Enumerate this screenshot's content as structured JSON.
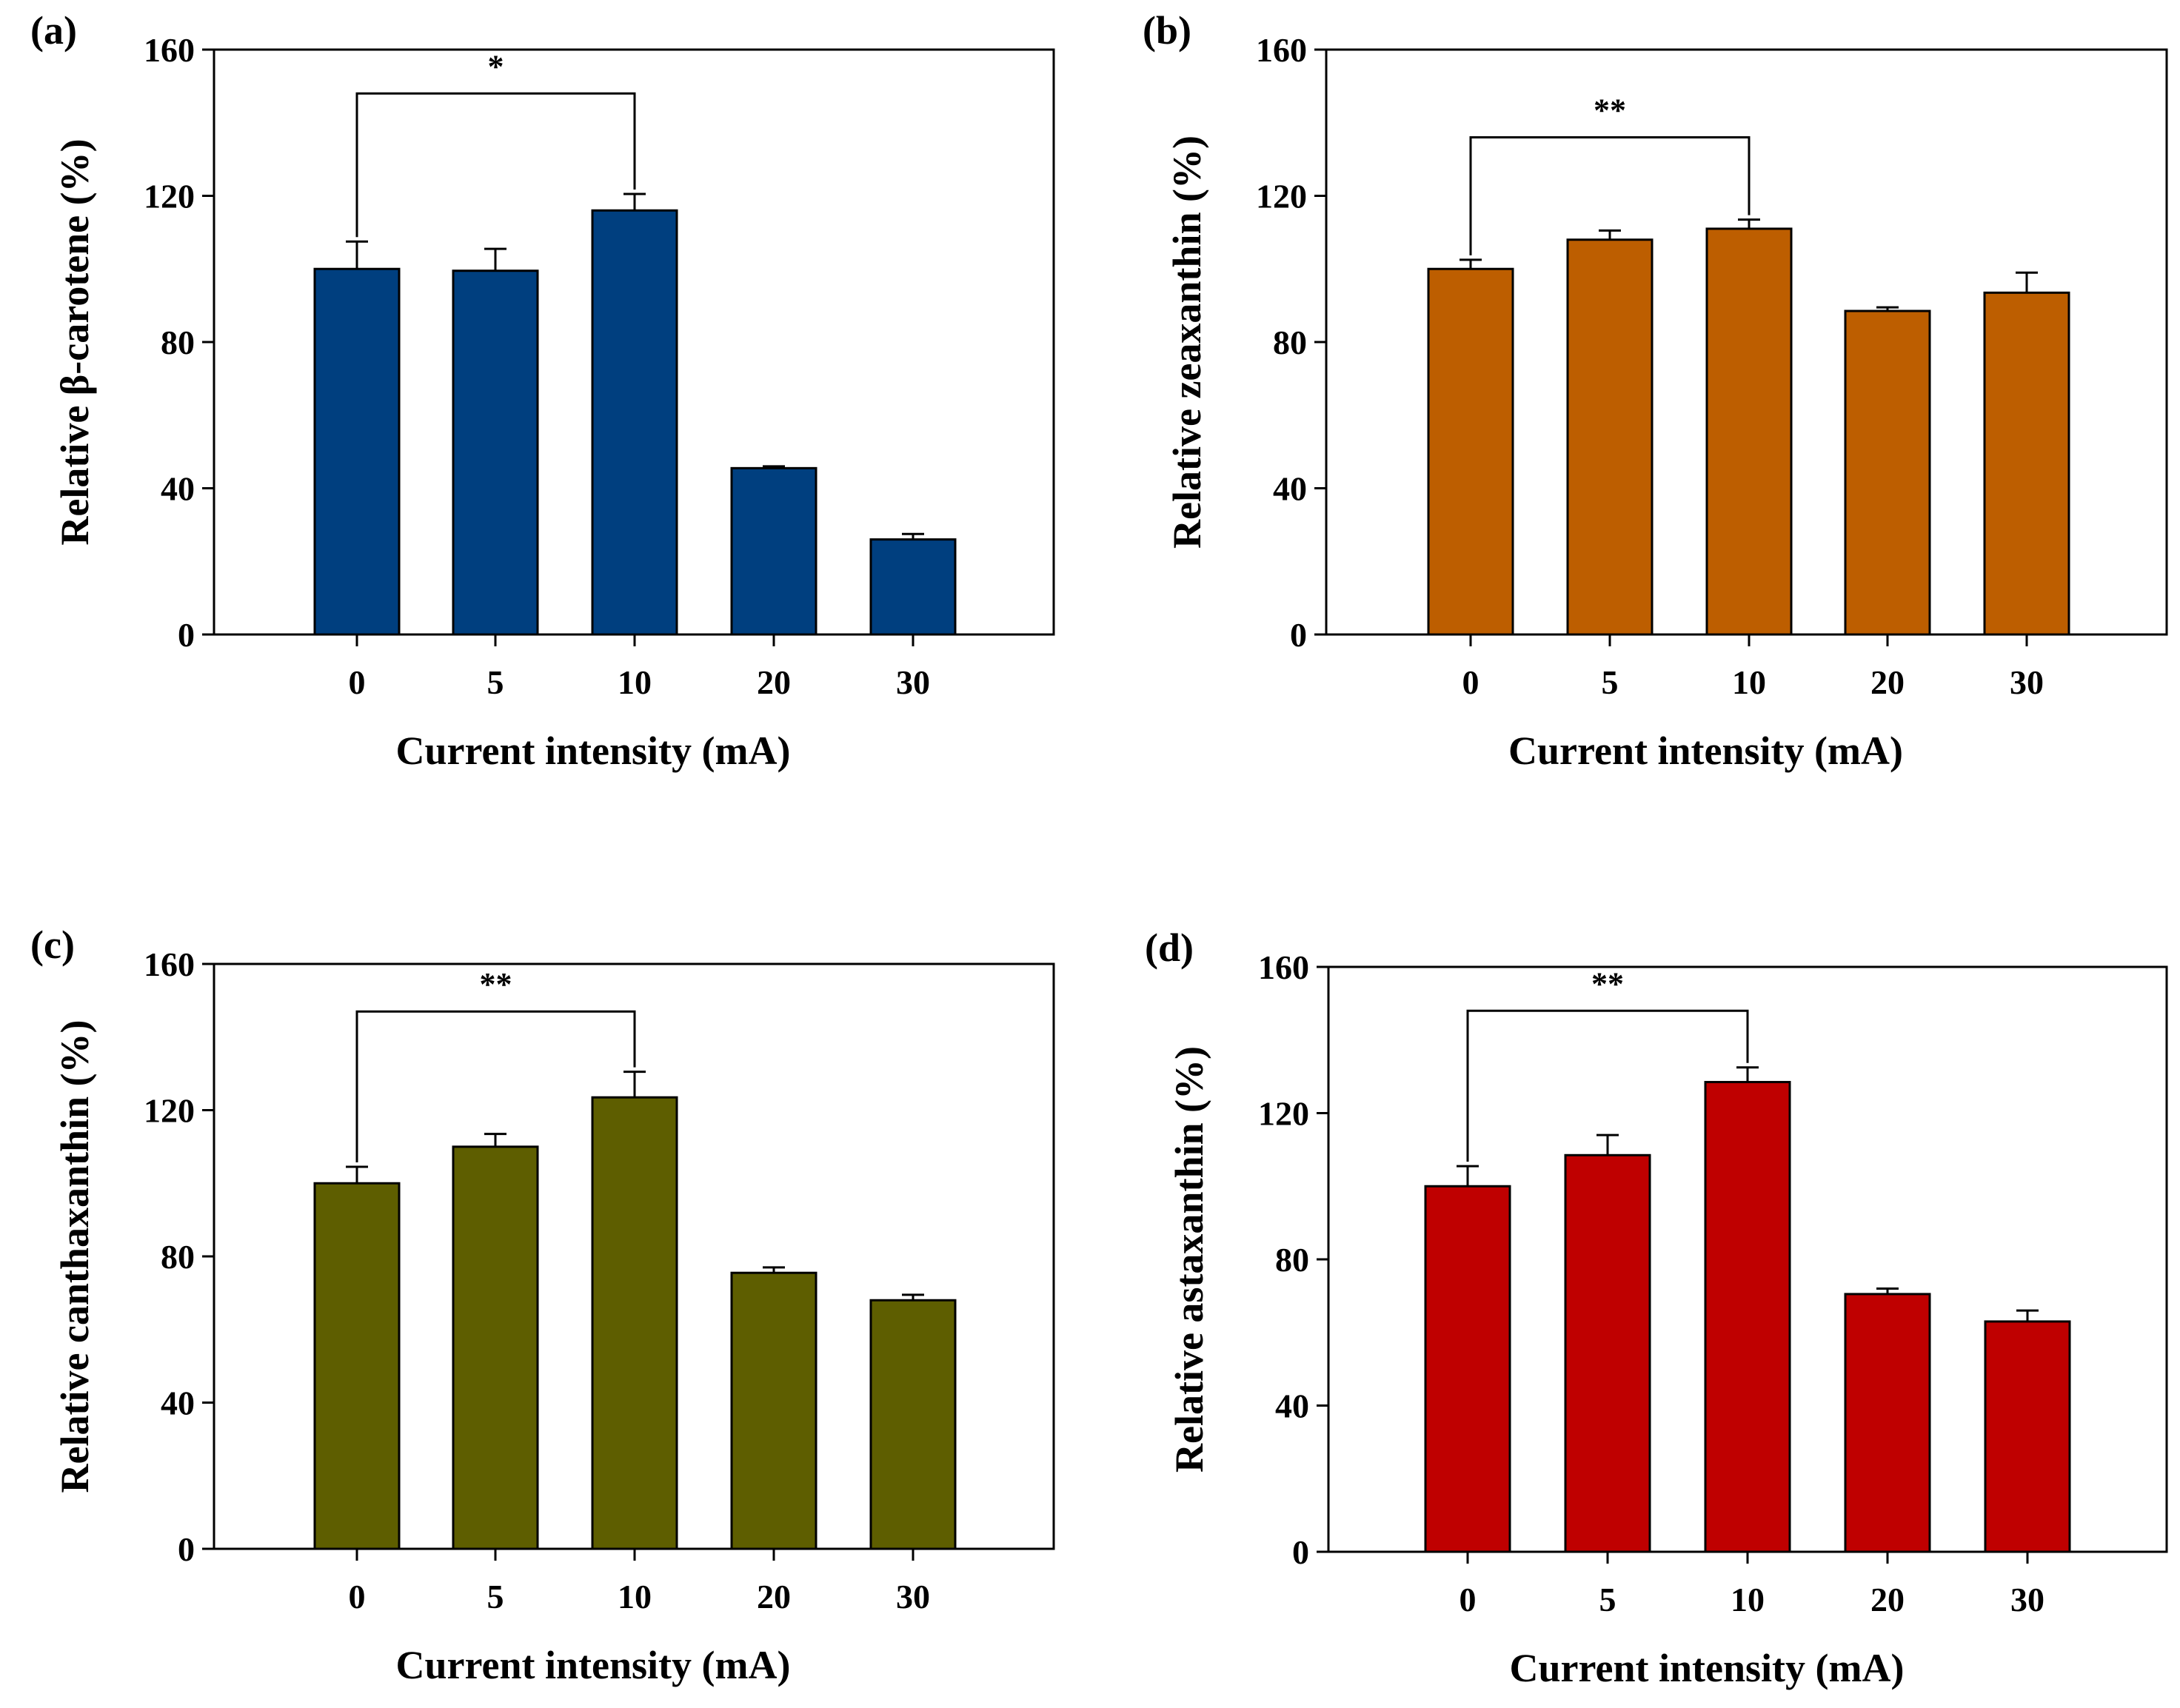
{
  "chart_data": [
    {
      "type": "bar",
      "panel_label": "(a)",
      "xlabel": "Current intensity (mA)",
      "ylabel": "Relative β-carotene (%)",
      "categories": [
        "0",
        "5",
        "10",
        "20",
        "30"
      ],
      "values": [
        100,
        99.5,
        116,
        45.5,
        26
      ],
      "errors": [
        7.5,
        6,
        4.5,
        0.5,
        1.5
      ],
      "ylim": [
        0,
        160
      ],
      "yticks": [
        "0",
        "40",
        "80",
        "120",
        "160"
      ],
      "color": "#003f7f",
      "significance": {
        "from": 0,
        "to": 2,
        "label": "*",
        "level": 148
      }
    },
    {
      "type": "bar",
      "panel_label": "(b)",
      "xlabel": "Current intensity (mA)",
      "ylabel": "Relative zeaxanthin (%)",
      "categories": [
        "0",
        "5",
        "10",
        "20",
        "30"
      ],
      "values": [
        100,
        108,
        111,
        88.5,
        93.5
      ],
      "errors": [
        2.5,
        2.5,
        2.5,
        1,
        5.5
      ],
      "ylim": [
        0,
        160
      ],
      "yticks": [
        "0",
        "40",
        "80",
        "120",
        "160"
      ],
      "color": "#bd5e00",
      "significance": {
        "from": 0,
        "to": 2,
        "label": "**",
        "level": 136
      }
    },
    {
      "type": "bar",
      "panel_label": "(c)",
      "xlabel": "Current intensity (mA)",
      "ylabel": "Relative canthaxanthin (%)",
      "categories": [
        "0",
        "5",
        "10",
        "20",
        "30"
      ],
      "values": [
        100,
        110,
        123.5,
        75.5,
        68
      ],
      "errors": [
        4.5,
        3.5,
        7,
        1.5,
        1.5
      ],
      "ylim": [
        0,
        160
      ],
      "yticks": [
        "0",
        "40",
        "80",
        "120",
        "160"
      ],
      "color": "#5e5e00",
      "significance": {
        "from": 0,
        "to": 2,
        "label": "**",
        "level": 147
      }
    },
    {
      "type": "bar",
      "panel_label": "(d)",
      "xlabel": "Current intensity (mA)",
      "ylabel": "Relative astaxanthin (%)",
      "categories": [
        "0",
        "5",
        "10",
        "20",
        "30"
      ],
      "values": [
        100,
        108.5,
        128.5,
        70.5,
        63
      ],
      "errors": [
        5.5,
        5.5,
        4,
        1.5,
        3
      ],
      "ylim": [
        0,
        160
      ],
      "yticks": [
        "0",
        "40",
        "80",
        "120",
        "160"
      ],
      "color": "#bf0000",
      "significance": {
        "from": 0,
        "to": 2,
        "label": "**",
        "level": 148
      }
    }
  ]
}
